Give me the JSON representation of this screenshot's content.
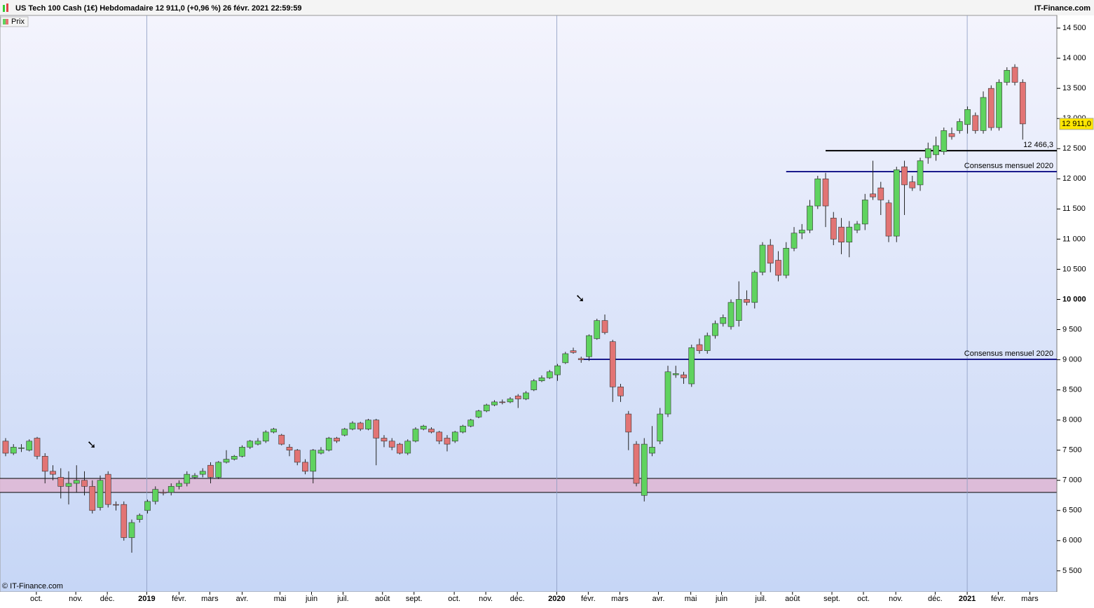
{
  "chart_data": {
    "type": "candlestick",
    "title": "US Tech 100 Cash (1€) Hebdomadaire 12 911,0 (+0,96 %) 26 févr. 2021 22:59:59",
    "source": "IT-Finance.com",
    "copyright": "© IT-Finance.com",
    "series": [
      {
        "name": "Prix",
        "up_color": "#5fd35f",
        "down_color": "#e27474",
        "open": [
          7650,
          7450,
          7530,
          7500,
          7700,
          7400,
          7150,
          7050,
          6900,
          6950,
          7000,
          6900,
          6550,
          7100,
          6600,
          6600,
          6050,
          6350,
          6500,
          6650,
          6800,
          6800,
          6900,
          6950,
          7050,
          7100,
          7250,
          7050,
          7300,
          7350,
          7400,
          7550,
          7600,
          7650,
          7800,
          7750,
          7550,
          7500,
          7300,
          7150,
          7450,
          7500,
          7700,
          7750,
          7850,
          7950,
          7850,
          8000,
          7700,
          7650,
          7600,
          7450,
          7650,
          7850,
          7850,
          7800,
          7700,
          7650,
          7800,
          7900,
          8050,
          8150,
          8250,
          8300,
          8300,
          8400,
          8350,
          8500,
          8650,
          8700,
          8750,
          8950,
          9150,
          9020,
          9050,
          9350,
          9650,
          9300,
          8550,
          8100,
          7600,
          6750,
          7450,
          7650,
          8100,
          8750,
          8750,
          8600,
          9250,
          9150,
          9400,
          9600,
          9550,
          9650,
          10000,
          9950,
          10450,
          10900,
          10650,
          10400,
          10850,
          11100,
          11150,
          11550,
          12000,
          11350,
          11200,
          10950,
          11150,
          11250,
          11750,
          11850,
          11600,
          11050,
          12200,
          11950,
          11900,
          12350,
          12400,
          12450,
          12750,
          12800,
          12900,
          13050,
          12800,
          13500,
          12850,
          13600,
          13850,
          13600
        ],
        "high": [
          7700,
          7600,
          7600,
          7680,
          7720,
          7450,
          7250,
          7200,
          7150,
          7250,
          7150,
          7000,
          7080,
          7150,
          6650,
          6650,
          6350,
          6450,
          6680,
          6900,
          6850,
          6950,
          7000,
          7150,
          7120,
          7200,
          7300,
          7320,
          7500,
          7420,
          7580,
          7670,
          7700,
          7830,
          7870,
          7770,
          7600,
          7520,
          7350,
          7520,
          7550,
          7720,
          7720,
          7870,
          7980,
          7970,
          8020,
          8020,
          7750,
          7700,
          7620,
          7680,
          7880,
          7920,
          7880,
          7820,
          7750,
          7820,
          7920,
          8020,
          8170,
          8270,
          8330,
          8340,
          8380,
          8430,
          8480,
          8680,
          8740,
          8830,
          8930,
          9130,
          9200,
          9050,
          9420,
          9680,
          9750,
          9330,
          8600,
          8150,
          7650,
          7700,
          7900,
          8200,
          8900,
          8900,
          8800,
          9250,
          9350,
          9450,
          9650,
          9750,
          10000,
          10300,
          10150,
          10480,
          10950,
          11000,
          10800,
          10950,
          11200,
          11250,
          11650,
          12050,
          12100,
          11450,
          11350,
          11300,
          11300,
          11750,
          12300,
          11950,
          11650,
          12200,
          12300,
          12050,
          12350,
          12600,
          12700,
          12850,
          12850,
          13000,
          13200,
          13100,
          13450,
          13550,
          13650,
          13850,
          13900,
          13650
        ],
        "low": [
          7400,
          7420,
          7470,
          7480,
          7350,
          6950,
          7000,
          6700,
          6600,
          6800,
          6750,
          6450,
          6500,
          6550,
          6500,
          6000,
          5800,
          6300,
          6450,
          6600,
          6750,
          6750,
          6850,
          6900,
          7020,
          7050,
          6950,
          7020,
          7280,
          7330,
          7380,
          7520,
          7580,
          7620,
          7780,
          7580,
          7400,
          7250,
          7100,
          6950,
          7430,
          7480,
          7620,
          7730,
          7830,
          7820,
          7830,
          7250,
          7550,
          7500,
          7430,
          7420,
          7630,
          7830,
          7780,
          7600,
          7480,
          7620,
          7780,
          7880,
          8030,
          8130,
          8230,
          8260,
          8280,
          8200,
          8330,
          8480,
          8630,
          8680,
          8650,
          8930,
          9100,
          8950,
          8980,
          9330,
          9420,
          8300,
          8300,
          7500,
          6900,
          6650,
          7400,
          7600,
          8050,
          8700,
          8600,
          8550,
          9100,
          9100,
          9350,
          9550,
          9500,
          9550,
          9900,
          9850,
          10400,
          10450,
          10300,
          10350,
          10800,
          11000,
          11100,
          11500,
          11200,
          10900,
          10750,
          10700,
          11100,
          11150,
          11650,
          11400,
          10950,
          10950,
          11400,
          11800,
          11800,
          12250,
          12300,
          12400,
          12650,
          12750,
          12750,
          12750,
          12750,
          12800,
          12800,
          13550,
          13550,
          12650
        ],
        "close": [
          7450,
          7550,
          7540,
          7650,
          7400,
          7150,
          7100,
          6900,
          6950,
          7000,
          6900,
          6500,
          7000,
          6600,
          6590,
          6050,
          6300,
          6420,
          6650,
          6850,
          6790,
          6900,
          6950,
          7100,
          7080,
          7150,
          7050,
          7300,
          7350,
          7400,
          7550,
          7650,
          7650,
          7800,
          7850,
          7600,
          7500,
          7300,
          7150,
          7500,
          7500,
          7700,
          7650,
          7850,
          7950,
          7850,
          8000,
          7700,
          7650,
          7550,
          7450,
          7650,
          7850,
          7900,
          7800,
          7650,
          7600,
          7800,
          7900,
          8000,
          8150,
          8250,
          8300,
          8290,
          8350,
          8350,
          8450,
          8650,
          8700,
          8800,
          8900,
          9100,
          9120,
          9000,
          9400,
          9650,
          9450,
          8550,
          8400,
          7800,
          6950,
          7600,
          7550,
          8100,
          8800,
          8770,
          8700,
          9200,
          9150,
          9400,
          9600,
          9700,
          9950,
          10000,
          9950,
          10450,
          10900,
          10600,
          10400,
          10850,
          11100,
          11150,
          11550,
          12000,
          11550,
          11000,
          10950,
          11200,
          11250,
          11650,
          11700,
          11650,
          11050,
          12150,
          11900,
          11850,
          12300,
          12500,
          12550,
          12800,
          12700,
          12950,
          13150,
          12800,
          13350,
          12850,
          13600,
          13800,
          13600,
          12911
        ]
      }
    ],
    "last_price_label": "12 911,0",
    "annotations": [
      {
        "label": "12 466,3",
        "value": 12466.3,
        "from": 104,
        "color": "#000000"
      },
      {
        "label": "Consensus mensuel 2020",
        "value": 12119,
        "from": 99,
        "color": "#1a1a8c"
      },
      {
        "label": "Consensus mensuel 2020",
        "value": 9006,
        "from": 73,
        "color": "#1a1a8c"
      }
    ],
    "zone": [
      6800,
      7032
    ],
    "xlim": [
      -0.71,
      133.33
    ],
    "ylim": [
      5150,
      14710
    ],
    "xticks": [
      {
        "value": 3.9,
        "label": "oct."
      },
      {
        "value": 8.9,
        "label": "nov."
      },
      {
        "value": 12.9,
        "label": "déc."
      },
      {
        "value": 17.9,
        "label": "2019"
      },
      {
        "value": 22,
        "label": "févr."
      },
      {
        "value": 25.9,
        "label": "mars"
      },
      {
        "value": 30,
        "label": "avr."
      },
      {
        "value": 34.8,
        "label": "mai"
      },
      {
        "value": 38.8,
        "label": "juin"
      },
      {
        "value": 42.8,
        "label": "juil."
      },
      {
        "value": 47.8,
        "label": "août"
      },
      {
        "value": 51.8,
        "label": "sept."
      },
      {
        "value": 56.9,
        "label": "oct."
      },
      {
        "value": 60.9,
        "label": "nov."
      },
      {
        "value": 64.9,
        "label": "déc."
      },
      {
        "value": 69.9,
        "label": "2020"
      },
      {
        "value": 73.9,
        "label": "févr."
      },
      {
        "value": 77.9,
        "label": "mars"
      },
      {
        "value": 82.8,
        "label": "avr."
      },
      {
        "value": 86.9,
        "label": "mai"
      },
      {
        "value": 90.8,
        "label": "juin"
      },
      {
        "value": 95.8,
        "label": "juil."
      },
      {
        "value": 99.8,
        "label": "août"
      },
      {
        "value": 104.8,
        "label": "sept."
      },
      {
        "value": 108.8,
        "label": "oct."
      },
      {
        "value": 112.9,
        "label": "nov."
      },
      {
        "value": 117.9,
        "label": "déc."
      },
      {
        "value": 121.96,
        "label": "2021"
      },
      {
        "value": 125.9,
        "label": "févr."
      },
      {
        "value": 129.9,
        "label": "mars"
      }
    ],
    "yticks": [
      {
        "value": 5500,
        "label": "5 500"
      },
      {
        "value": 6000,
        "label": "6 000"
      },
      {
        "value": 6500,
        "label": "6 500"
      },
      {
        "value": 7000,
        "label": "7 000"
      },
      {
        "value": 7500,
        "label": "7 500"
      },
      {
        "value": 8000,
        "label": "8 000"
      },
      {
        "value": 8500,
        "label": "8 500"
      },
      {
        "value": 9000,
        "label": "9 000"
      },
      {
        "value": 9500,
        "label": "9 500"
      },
      {
        "value": 10000,
        "label": "10 000"
      },
      {
        "value": 10500,
        "label": "10 500"
      },
      {
        "value": 11000,
        "label": "11 000"
      },
      {
        "value": 11500,
        "label": "11 500"
      },
      {
        "value": 12000,
        "label": "12 000"
      },
      {
        "value": 12500,
        "label": "12 500"
      },
      {
        "value": 13000,
        "label": "13 000"
      },
      {
        "value": 13500,
        "label": "13 500"
      },
      {
        "value": 14000,
        "label": "14 000"
      },
      {
        "value": 14500,
        "label": "14 500"
      }
    ]
  }
}
